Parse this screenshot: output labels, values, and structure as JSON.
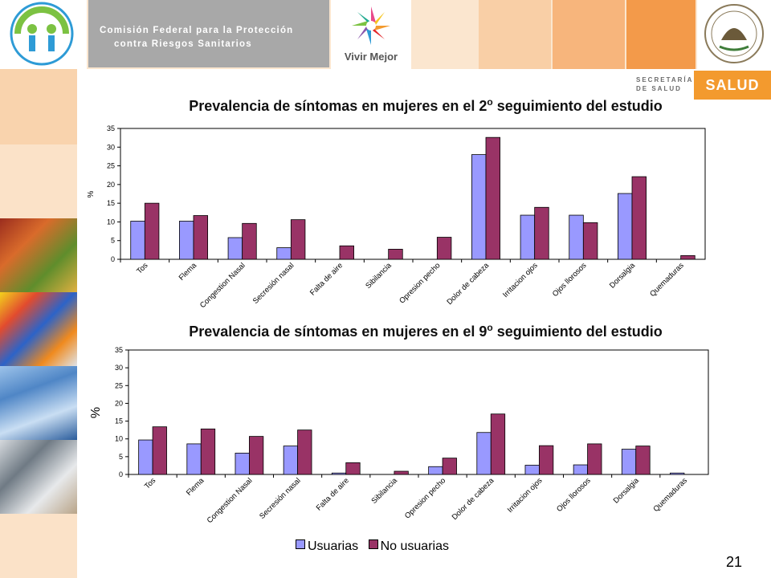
{
  "header": {
    "agency_line1": "Comisión Federal para la Protección",
    "agency_line2": "contra Riesgos Sanitarios",
    "program": "Vivir Mejor",
    "secretaria_line1": "SECRETARÍA",
    "secretaria_line2": "DE SALUD",
    "salud": "SALUD"
  },
  "page_number": "21",
  "colors": {
    "usuarias": "#9999ff",
    "no_usuarias": "#993366"
  },
  "legend": {
    "usuarias": "Usuarias",
    "no_usuarias": "No usuarias"
  },
  "chart_data": [
    {
      "type": "bar",
      "title_main": "Prevalencia de síntomas en mujeres en el 2",
      "title_sup": "o",
      "title_end": " seguimiento del estudio",
      "ylabel": "%",
      "ylim": [
        0,
        35
      ],
      "yticks": [
        "0",
        "5",
        "10",
        "15",
        "20",
        "25",
        "30",
        "35"
      ],
      "categories": [
        "Tos",
        "Flema",
        "Congestion Nasal",
        "Secresión nasal",
        "Falta de aire",
        "Sibilancia",
        "Opresion pecho",
        "Dolor de cabeza",
        "Irritacion ojos",
        "Ojos llorosos",
        "Dorsalgia",
        "Quemaduras"
      ],
      "series": [
        {
          "name": "Usuarias",
          "values": [
            10.2,
            10.2,
            5.8,
            3.1,
            0,
            0,
            0,
            28,
            11.8,
            11.8,
            17.6,
            0
          ]
        },
        {
          "name": "No usuarias",
          "values": [
            15,
            11.7,
            9.6,
            10.6,
            3.6,
            2.7,
            5.9,
            32.6,
            13.9,
            9.8,
            22.1,
            1.0
          ]
        }
      ]
    },
    {
      "type": "bar",
      "title_main": "Prevalencia de síntomas en mujeres en el 9",
      "title_sup": "o",
      "title_end": " seguimiento del estudio",
      "ylabel": "%",
      "ylim": [
        0,
        35
      ],
      "yticks": [
        "0",
        "5",
        "10",
        "15",
        "20",
        "25",
        "30",
        "35"
      ],
      "categories": [
        "Tos",
        "Flema",
        "Congestion Nasal",
        "Secresión nasal",
        "Falta de aire",
        "Sibilancia",
        "Opresion pecho",
        "Dolor de cabeza",
        "Irritacion ojos",
        "Ojos llorosos",
        "Dorsalgia",
        "Quemaduras"
      ],
      "series": [
        {
          "name": "Usuarias",
          "values": [
            9.7,
            8.6,
            6.0,
            8.0,
            0.4,
            0,
            2.2,
            11.8,
            2.6,
            2.7,
            7.1,
            0.4
          ]
        },
        {
          "name": "No usuarias",
          "values": [
            13.4,
            12.8,
            10.7,
            12.5,
            3.3,
            0.9,
            4.6,
            17.0,
            8.1,
            8.6,
            8.0,
            0
          ]
        }
      ]
    }
  ]
}
